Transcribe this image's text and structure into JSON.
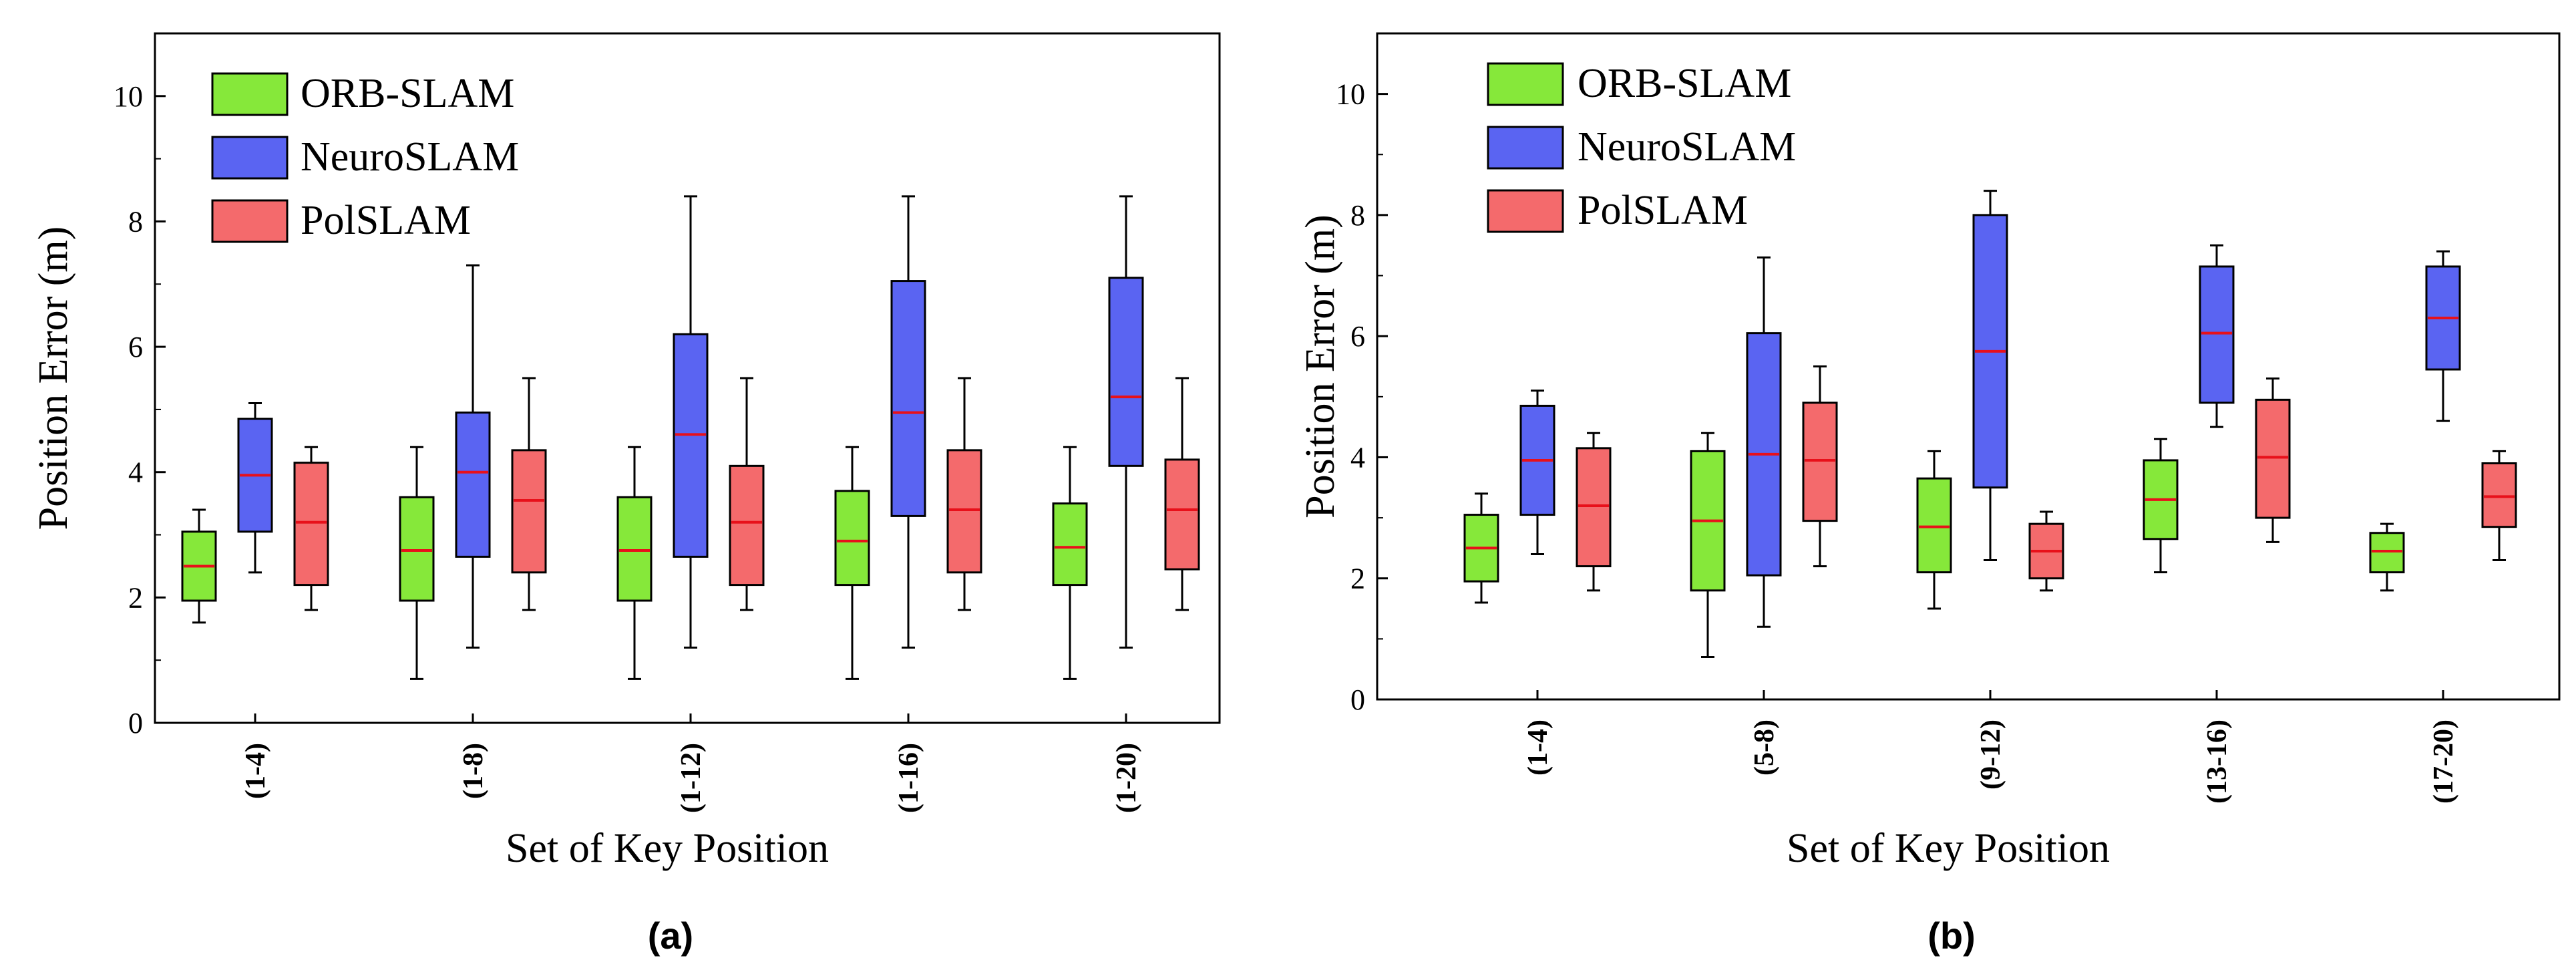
{
  "colors": {
    "orb": "#86e83a",
    "neuro": "#5a64f2",
    "pol": "#f46a6c",
    "median": "#e8101a",
    "whisker": "#000000"
  },
  "chart_data": [
    {
      "type": "box",
      "panel_label": "(a)",
      "xlabel": "Set of Key Position",
      "ylabel": "Position Error (m)",
      "ylim": [
        0,
        11
      ],
      "yticks": [
        0,
        2,
        4,
        6,
        8,
        10
      ],
      "legend": {
        "position": "top-left",
        "entries": [
          "ORB-SLAM",
          "NeuroSLAM",
          "PolSLAM"
        ]
      },
      "categories": [
        "(1-4)",
        "(1-8)",
        "(1-12)",
        "(1-16)",
        "(1-20)"
      ],
      "series": [
        {
          "name": "ORB-SLAM",
          "color_key": "orb",
          "boxes": [
            {
              "min": 1.6,
              "q1": 1.95,
              "median": 2.5,
              "q3": 3.05,
              "max": 3.4
            },
            {
              "min": 0.7,
              "q1": 1.95,
              "median": 2.75,
              "q3": 3.6,
              "max": 4.4
            },
            {
              "min": 0.7,
              "q1": 1.95,
              "median": 2.75,
              "q3": 3.6,
              "max": 4.4
            },
            {
              "min": 0.7,
              "q1": 2.2,
              "median": 2.9,
              "q3": 3.7,
              "max": 4.4
            },
            {
              "min": 0.7,
              "q1": 2.2,
              "median": 2.8,
              "q3": 3.5,
              "max": 4.4
            }
          ]
        },
        {
          "name": "NeuroSLAM",
          "color_key": "neuro",
          "boxes": [
            {
              "min": 2.4,
              "q1": 3.05,
              "median": 3.95,
              "q3": 4.85,
              "max": 5.1
            },
            {
              "min": 1.2,
              "q1": 2.65,
              "median": 4.0,
              "q3": 4.95,
              "max": 7.3
            },
            {
              "min": 1.2,
              "q1": 2.65,
              "median": 4.6,
              "q3": 6.2,
              "max": 8.4
            },
            {
              "min": 1.2,
              "q1": 3.3,
              "median": 4.95,
              "q3": 7.05,
              "max": 8.4
            },
            {
              "min": 1.2,
              "q1": 4.1,
              "median": 5.2,
              "q3": 7.1,
              "max": 8.4
            }
          ]
        },
        {
          "name": "PolSLAM",
          "color_key": "pol",
          "boxes": [
            {
              "min": 1.8,
              "q1": 2.2,
              "median": 3.2,
              "q3": 4.15,
              "max": 4.4
            },
            {
              "min": 1.8,
              "q1": 2.4,
              "median": 3.55,
              "q3": 4.35,
              "max": 5.5
            },
            {
              "min": 1.8,
              "q1": 2.2,
              "median": 3.2,
              "q3": 4.1,
              "max": 5.5
            },
            {
              "min": 1.8,
              "q1": 2.4,
              "median": 3.4,
              "q3": 4.35,
              "max": 5.5
            },
            {
              "min": 1.8,
              "q1": 2.45,
              "median": 3.4,
              "q3": 4.2,
              "max": 5.5
            }
          ]
        }
      ]
    },
    {
      "type": "box",
      "panel_label": "(b)",
      "xlabel": "Set of Key Position",
      "ylabel": "Position Error (m)",
      "ylim": [
        0,
        11
      ],
      "yticks": [
        0,
        2,
        4,
        6,
        8,
        10
      ],
      "legend": {
        "position": "top-left",
        "entries": [
          "ORB-SLAM",
          "NeuroSLAM",
          "PolSLAM"
        ]
      },
      "categories": [
        "(1-4)",
        "(5-8)",
        "(9-12)",
        "(13-16)",
        "(17-20)"
      ],
      "series": [
        {
          "name": "ORB-SLAM",
          "color_key": "orb",
          "boxes": [
            {
              "min": 1.6,
              "q1": 1.95,
              "median": 2.5,
              "q3": 3.05,
              "max": 3.4
            },
            {
              "min": 0.7,
              "q1": 1.8,
              "median": 2.95,
              "q3": 4.1,
              "max": 4.4
            },
            {
              "min": 1.5,
              "q1": 2.1,
              "median": 2.85,
              "q3": 3.65,
              "max": 4.1
            },
            {
              "min": 2.1,
              "q1": 2.65,
              "median": 3.3,
              "q3": 3.95,
              "max": 4.3
            },
            {
              "min": 1.8,
              "q1": 2.1,
              "median": 2.45,
              "q3": 2.75,
              "max": 2.9
            }
          ]
        },
        {
          "name": "NeuroSLAM",
          "color_key": "neuro",
          "boxes": [
            {
              "min": 2.4,
              "q1": 3.05,
              "median": 3.95,
              "q3": 4.85,
              "max": 5.1
            },
            {
              "min": 1.2,
              "q1": 2.05,
              "median": 4.05,
              "q3": 6.05,
              "max": 7.3
            },
            {
              "min": 2.3,
              "q1": 3.5,
              "median": 5.75,
              "q3": 8.0,
              "max": 8.4
            },
            {
              "min": 4.5,
              "q1": 4.9,
              "median": 6.05,
              "q3": 7.15,
              "max": 7.5
            },
            {
              "min": 4.6,
              "q1": 5.45,
              "median": 6.3,
              "q3": 7.15,
              "max": 7.4
            }
          ]
        },
        {
          "name": "PolSLAM",
          "color_key": "pol",
          "boxes": [
            {
              "min": 1.8,
              "q1": 2.2,
              "median": 3.2,
              "q3": 4.15,
              "max": 4.4
            },
            {
              "min": 2.2,
              "q1": 2.95,
              "median": 3.95,
              "q3": 4.9,
              "max": 5.5
            },
            {
              "min": 1.8,
              "q1": 2.0,
              "median": 2.45,
              "q3": 2.9,
              "max": 3.1
            },
            {
              "min": 2.6,
              "q1": 3.0,
              "median": 4.0,
              "q3": 4.95,
              "max": 5.3
            },
            {
              "min": 2.3,
              "q1": 2.85,
              "median": 3.35,
              "q3": 3.9,
              "max": 4.1
            }
          ]
        }
      ]
    }
  ]
}
